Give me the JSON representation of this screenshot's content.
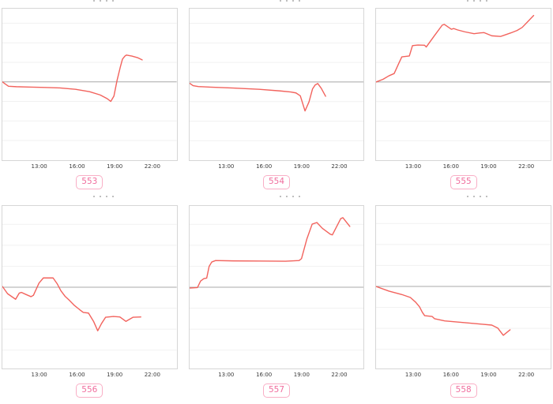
{
  "page_note": "grid of six mini time-series charts; column titles are cropped off at the top edge of the screenshot",
  "colors": {
    "line": "#f2635d",
    "zero_line": "#a8a8a8",
    "grid_line": "#f1f1f1",
    "panel_border": "#d6d6d6",
    "tick_text": "#3a3a3a",
    "badge_text": "#f06d9d",
    "badge_border": "#f9afc6",
    "background": "#ffffff"
  },
  "x_ticks": [
    "13:00",
    "16:00",
    "19:00",
    "22:00"
  ],
  "x_tick_positions_pct": [
    21.4,
    42.9,
    64.3,
    85.7
  ],
  "grid_spacing_pct": 12.9,
  "chart_data": [
    {
      "type": "line",
      "badge": "553",
      "title": "",
      "x_axis": {
        "tick_labels": [
          "13:00",
          "16:00",
          "19:00",
          "22:00"
        ],
        "tick_positions_pct": [
          21.4,
          42.9,
          64.3,
          85.7
        ],
        "range_estimate": [
          "10:00",
          "24:00"
        ]
      },
      "y_axis": {
        "labels_visible": false,
        "reference": "gray zero/reference line at baseline_pct"
      },
      "baseline_pct": 48.3,
      "shape_summary": "starts on baseline, dips slightly below, slow decline to trough near 18:30, sharp spike above baseline near 19:00, gentle fall to end ~21:00",
      "points_pct": [
        [
          0,
          48.3
        ],
        [
          1.5,
          49.6
        ],
        [
          3.5,
          51.2
        ],
        [
          8,
          51.5
        ],
        [
          15,
          51.7
        ],
        [
          24,
          52.0
        ],
        [
          33,
          52.3
        ],
        [
          42,
          53.2
        ],
        [
          50,
          54.8
        ],
        [
          56,
          56.9
        ],
        [
          60,
          59.3
        ],
        [
          62.2,
          61.2
        ],
        [
          64,
          57.7
        ],
        [
          65.8,
          47.3
        ],
        [
          67.6,
          38.8
        ],
        [
          68.9,
          33.3
        ],
        [
          70.3,
          31.3
        ],
        [
          71.2,
          30.6
        ],
        [
          74.3,
          31.3
        ],
        [
          77.5,
          32.3
        ],
        [
          80.2,
          33.8
        ]
      ]
    },
    {
      "type": "line",
      "badge": "554",
      "title": "",
      "x_axis": {
        "tick_labels": [
          "13:00",
          "16:00",
          "19:00",
          "22:00"
        ],
        "tick_positions_pct": [
          21.4,
          42.9,
          64.3,
          85.7
        ],
        "range_estimate": [
          "10:00",
          "24:00"
        ]
      },
      "y_axis": {
        "labels_visible": false,
        "reference": "gray zero/reference line at baseline_pct"
      },
      "baseline_pct": 48.4,
      "shape_summary": "starts just below baseline, slow steady decline, sharp V dip near 19:15, rebound to touch baseline ~20:00, falls again to end",
      "points_pct": [
        [
          0,
          49.2
        ],
        [
          2,
          50.8
        ],
        [
          5,
          51.4
        ],
        [
          12,
          51.8
        ],
        [
          25,
          52.4
        ],
        [
          40,
          53.2
        ],
        [
          52,
          54.3
        ],
        [
          58,
          55.0
        ],
        [
          61,
          55.6
        ],
        [
          63.5,
          57.5
        ],
        [
          66.2,
          67.5
        ],
        [
          68.5,
          61.5
        ],
        [
          70.5,
          53.0
        ],
        [
          72,
          50.4
        ],
        [
          73.5,
          49.4
        ],
        [
          75.5,
          52.5
        ],
        [
          78,
          57.8
        ]
      ]
    },
    {
      "type": "line",
      "badge": "555",
      "title": "",
      "x_axis": {
        "tick_labels": [
          "13:00",
          "16:00",
          "19:00",
          "22:00"
        ],
        "tick_positions_pct": [
          21.4,
          42.9,
          64.3,
          85.7
        ],
        "range_estimate": [
          "10:00",
          "24:00"
        ]
      },
      "y_axis": {
        "labels_visible": false,
        "reference": "gray zero/reference line at baseline_pct"
      },
      "baseline_pct": 48.4,
      "shape_summary": "starts on baseline, climbs in steps through 12:00-13:00, peak near 15:30, shallow wavy plateau, rises steeply again to highest point at end ~22:40",
      "points_pct": [
        [
          0,
          48.4
        ],
        [
          4,
          46.6
        ],
        [
          7.4,
          44.3
        ],
        [
          10.4,
          42.8
        ],
        [
          13.2,
          35.7
        ],
        [
          14.8,
          31.8
        ],
        [
          19.1,
          31.2
        ],
        [
          20.9,
          24.4
        ],
        [
          24,
          24.0
        ],
        [
          27.8,
          24.1
        ],
        [
          28.8,
          25.3
        ],
        [
          33.5,
          17.8
        ],
        [
          38,
          10.8
        ],
        [
          39.2,
          10.4
        ],
        [
          43.2,
          13.6
        ],
        [
          44.5,
          13.1
        ],
        [
          46.7,
          14.0
        ],
        [
          51,
          15.3
        ],
        [
          56.2,
          16.5
        ],
        [
          59.8,
          16.0
        ],
        [
          62,
          15.8
        ],
        [
          66.4,
          17.9
        ],
        [
          71.5,
          18.3
        ],
        [
          77.3,
          16.0
        ],
        [
          80.9,
          14.4
        ],
        [
          83.8,
          12.4
        ],
        [
          87,
          8.6
        ],
        [
          90.4,
          4.5
        ]
      ]
    },
    {
      "type": "line",
      "badge": "556",
      "title": "",
      "x_axis": {
        "tick_labels": [
          "13:00",
          "16:00",
          "19:00",
          "22:00"
        ],
        "tick_positions_pct": [
          21.4,
          42.9,
          64.3,
          85.7
        ],
        "range_estimate": [
          "10:00",
          "24:00"
        ]
      },
      "y_axis": {
        "labels_visible": false,
        "reference": "gray zero/reference line at baseline_pct"
      },
      "baseline_pct": 50,
      "shape_summary": "starts on baseline, zigzags below, brief bump above baseline ~13:30, steady decline to trough ~17:20, partial recovery then flat slightly below to end ~21:00",
      "points_pct": [
        [
          0,
          49.5
        ],
        [
          3,
          54.0
        ],
        [
          7.6,
          57.4
        ],
        [
          9.7,
          53.6
        ],
        [
          11,
          53.2
        ],
        [
          13.4,
          54.4
        ],
        [
          16.4,
          55.8
        ],
        [
          17.8,
          55.0
        ],
        [
          21,
          47.5
        ],
        [
          23.5,
          44.3
        ],
        [
          29.1,
          44.3
        ],
        [
          31.4,
          47.8
        ],
        [
          33.6,
          52.2
        ],
        [
          35.9,
          55.5
        ],
        [
          38.1,
          57.7
        ],
        [
          41.1,
          61.0
        ],
        [
          44.1,
          63.6
        ],
        [
          46.4,
          65.5
        ],
        [
          49.4,
          65.9
        ],
        [
          52.4,
          71.2
        ],
        [
          54.7,
          76.8
        ],
        [
          56.9,
          72.3
        ],
        [
          59.2,
          68.5
        ],
        [
          63.7,
          68.0
        ],
        [
          67.4,
          68.3
        ],
        [
          70.9,
          71.0
        ],
        [
          74.9,
          68.5
        ],
        [
          79.4,
          68.3
        ]
      ]
    },
    {
      "type": "line",
      "badge": "557",
      "title": "",
      "x_axis": {
        "tick_labels": [
          "13:00",
          "16:00",
          "19:00",
          "22:00"
        ],
        "tick_positions_pct": [
          21.4,
          42.9,
          64.3,
          85.7
        ],
        "range_estimate": [
          "10:00",
          "24:00"
        ]
      },
      "y_axis": {
        "labels_visible": false,
        "reference": "gray zero/reference line at baseline_pct"
      },
      "baseline_pct": 50,
      "shape_summary": "starts on baseline, steps up ~12:00 to long flat plateau until ~19:00, steep climb to peak ~20:00, dip ~21:00, higher peak ~22:00, small drop at end",
      "points_pct": [
        [
          0,
          50.5
        ],
        [
          4.5,
          50.2
        ],
        [
          6.3,
          46.2
        ],
        [
          8.2,
          44.7
        ],
        [
          9.8,
          44.4
        ],
        [
          11.2,
          37.2
        ],
        [
          12.7,
          34.5
        ],
        [
          14.9,
          33.6
        ],
        [
          25,
          33.8
        ],
        [
          40,
          33.9
        ],
        [
          55,
          34.0
        ],
        [
          62.8,
          33.6
        ],
        [
          64.2,
          32.4
        ],
        [
          67.3,
          20.2
        ],
        [
          70.3,
          11.2
        ],
        [
          73,
          10.2
        ],
        [
          76.2,
          13.8
        ],
        [
          80.7,
          17.4
        ],
        [
          81.9,
          17.8
        ],
        [
          86.7,
          7.8
        ],
        [
          87.9,
          7.2
        ],
        [
          91.9,
          12.6
        ]
      ]
    },
    {
      "type": "line",
      "badge": "558",
      "title": "",
      "x_axis": {
        "tick_labels": [
          "13:00",
          "16:00",
          "19:00",
          "22:00"
        ],
        "tick_positions_pct": [
          21.4,
          42.9,
          64.3,
          85.7
        ],
        "range_estimate": [
          "10:00",
          "24:00"
        ]
      },
      "y_axis": {
        "labels_visible": false,
        "reference": "gray zero/reference line at baseline_pct"
      },
      "baseline_pct": 49.5,
      "shape_summary": "starts on baseline, steady decline steepening ~13:00-14:00, small step then slow drift down, dip to low ~20:15, small recovery at end ~21:00",
      "points_pct": [
        [
          0,
          49.5
        ],
        [
          7.4,
          52.4
        ],
        [
          14.8,
          54.5
        ],
        [
          19.7,
          56.3
        ],
        [
          22.7,
          59.2
        ],
        [
          24.9,
          62.0
        ],
        [
          26.6,
          65.5
        ],
        [
          27.9,
          67.5
        ],
        [
          32.2,
          68.0
        ],
        [
          33.6,
          69.4
        ],
        [
          39.4,
          70.7
        ],
        [
          51,
          71.8
        ],
        [
          61.1,
          72.8
        ],
        [
          66.4,
          73.3
        ],
        [
          69.9,
          75.2
        ],
        [
          73,
          79.6
        ],
        [
          76.9,
          76.2
        ]
      ]
    }
  ]
}
